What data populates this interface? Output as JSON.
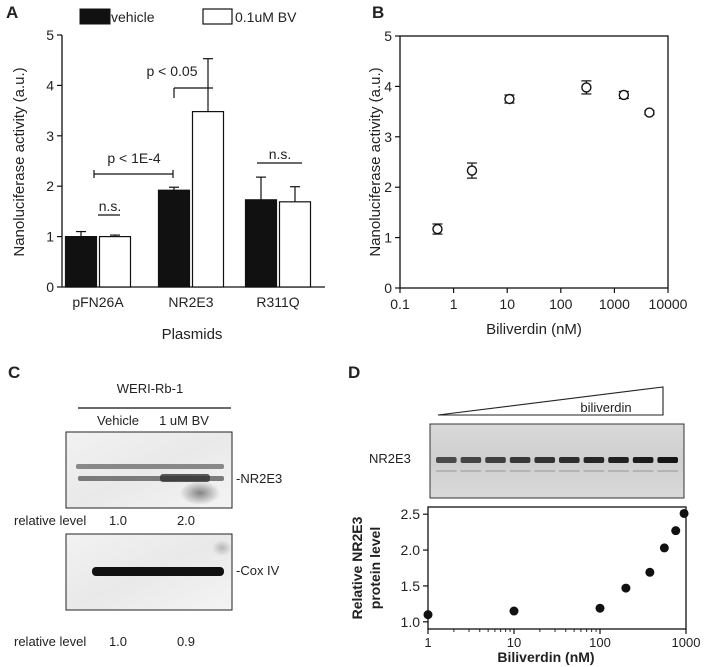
{
  "panels": {
    "a": "A",
    "b": "B",
    "c": "C",
    "d": "D"
  },
  "chart_data": [
    {
      "id": "A",
      "type": "bar",
      "xlabel": "Plasmids",
      "ylabel": "Nanoluciferase activity (a.u.)",
      "ylim": [
        0,
        5
      ],
      "yticks": [
        "0",
        "1",
        "2",
        "3",
        "4",
        "5"
      ],
      "categories": [
        "pFN26A",
        "NR2E3",
        "R311Q"
      ],
      "legend_position": "top",
      "series": [
        {
          "name": "vehicle",
          "color": "#111111",
          "values": [
            1.0,
            1.92,
            1.73
          ],
          "errors": [
            0.1,
            0.06,
            0.45
          ]
        },
        {
          "name": "0.1uM BV",
          "color": "#ffffff",
          "values": [
            1.0,
            3.48,
            1.69
          ],
          "errors": [
            0.03,
            1.05,
            0.3
          ]
        }
      ],
      "annotations": [
        "n.s.",
        "p < 0.05",
        "p < 1E-4",
        "n.s."
      ]
    },
    {
      "id": "B",
      "type": "scatter",
      "xscale": "log",
      "xlabel": "Biliverdin (nM)",
      "ylabel": "Nanoluciferase activity (a.u.)",
      "xlim": [
        0.1,
        10000
      ],
      "ylim": [
        0,
        5
      ],
      "xticks": [
        "0.1",
        "1",
        "10",
        "100",
        "1000",
        "10000"
      ],
      "yticks": [
        "0",
        "1",
        "2",
        "3",
        "4",
        "5"
      ],
      "marker": "open-circle",
      "points": [
        {
          "x": 0.5,
          "y": 1.17,
          "err": 0.1
        },
        {
          "x": 2.2,
          "y": 2.33,
          "err": 0.15
        },
        {
          "x": 11,
          "y": 3.75,
          "err": 0.08
        },
        {
          "x": 300,
          "y": 3.98,
          "err": 0.13
        },
        {
          "x": 1500,
          "y": 3.83,
          "err": 0.07
        },
        {
          "x": 4500,
          "y": 3.48,
          "err": 0.04
        }
      ]
    },
    {
      "id": "D",
      "type": "scatter",
      "xscale": "log",
      "xlabel": "Biliverdin (nM)",
      "ylabel": "Relative NR2E3 protein level",
      "xlim": [
        1,
        1000
      ],
      "ylim": [
        0.9,
        2.6
      ],
      "xticks": [
        "1",
        "10",
        "100",
        "1000"
      ],
      "yticks": [
        "1.0",
        "1.5",
        "2.0",
        "2.5"
      ],
      "marker": "filled-circle",
      "points": [
        {
          "x": 1,
          "y": 1.1
        },
        {
          "x": 10,
          "y": 1.15
        },
        {
          "x": 100,
          "y": 1.19
        },
        {
          "x": 200,
          "y": 1.47
        },
        {
          "x": 380,
          "y": 1.69
        },
        {
          "x": 560,
          "y": 2.03
        },
        {
          "x": 760,
          "y": 2.27
        },
        {
          "x": 950,
          "y": 2.51
        }
      ]
    }
  ],
  "western_c": {
    "cell_line": "WERI-Rb-1",
    "lanes": [
      "Vehicle",
      "1 uM BV"
    ],
    "blots": [
      {
        "label": "-NR2E3",
        "relative_label": "relative level",
        "values": [
          "1.0",
          "2.0"
        ]
      },
      {
        "label": "-Cox IV",
        "relative_label": "relative level",
        "values": [
          "1.0",
          "0.9"
        ]
      }
    ]
  },
  "western_d": {
    "gradient_label": "biliverdin",
    "blot_label": "NR2E3",
    "lane_count": 10
  }
}
